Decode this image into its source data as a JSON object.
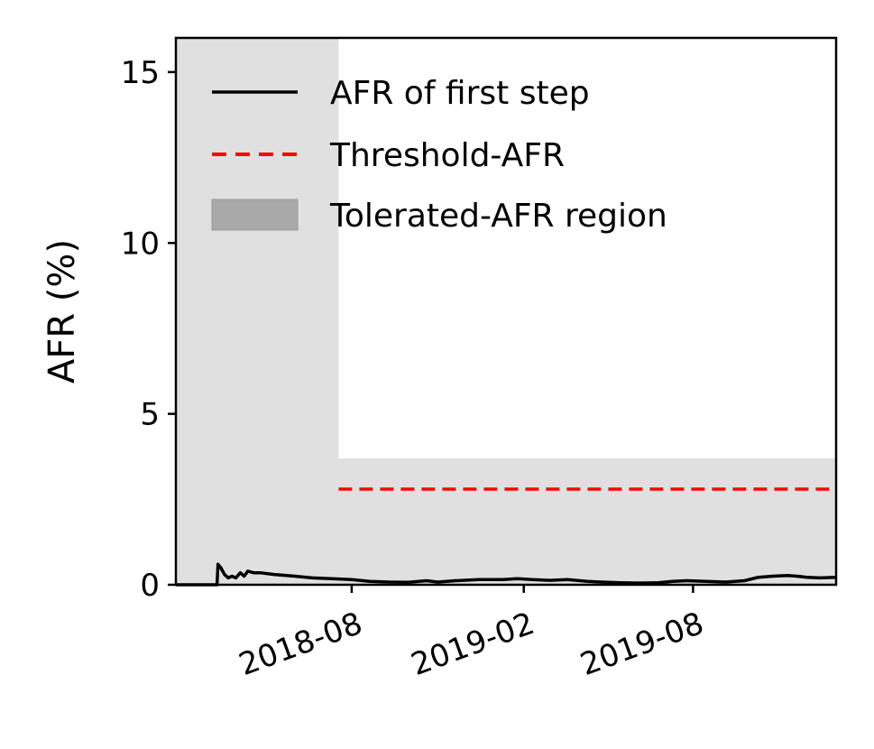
{
  "chart_data": {
    "type": "line",
    "ylabel": "AFR (%)",
    "xlabel": "",
    "ylim": [
      0,
      16
    ],
    "xlim": [
      "2018-01-25",
      "2020-01-01"
    ],
    "x_ticks": [
      {
        "date": "2018-08-01",
        "label": "2018-08"
      },
      {
        "date": "2019-02-01",
        "label": "2019-02"
      },
      {
        "date": "2019-08-01",
        "label": "2019-08"
      }
    ],
    "y_ticks": [
      0,
      5,
      10,
      15
    ],
    "grid": false,
    "legend_position": "top-right",
    "legend": [
      {
        "label": "AFR of first step",
        "kind": "line",
        "color": "#000000"
      },
      {
        "label": "Threshold-AFR",
        "kind": "dashed",
        "color": "#ff0000"
      },
      {
        "label": "Tolerated-AFR region",
        "kind": "patch",
        "color": "#a9a9a9"
      }
    ],
    "tolerated_regions": [
      {
        "x0": "2018-01-25",
        "x1": "2018-07-18",
        "y0": 0,
        "y1": 16
      },
      {
        "x0": "2018-07-18",
        "x1": "2020-01-01",
        "y0": 0,
        "y1": 3.7
      }
    ],
    "threshold": {
      "x0": "2018-07-18",
      "x1": "2020-01-01",
      "y": 2.8,
      "color": "#ff0000"
    },
    "series": [
      {
        "name": "AFR of first step",
        "color": "#000000",
        "points": [
          [
            "2018-01-25",
            0
          ],
          [
            "2018-03-10",
            0
          ],
          [
            "2018-03-11",
            0.6
          ],
          [
            "2018-03-14",
            0.5
          ],
          [
            "2018-03-18",
            0.3
          ],
          [
            "2018-03-22",
            0.2
          ],
          [
            "2018-03-26",
            0.25
          ],
          [
            "2018-03-30",
            0.2
          ],
          [
            "2018-04-04",
            0.35
          ],
          [
            "2018-04-08",
            0.25
          ],
          [
            "2018-04-12",
            0.4
          ],
          [
            "2018-04-18",
            0.35
          ],
          [
            "2018-04-25",
            0.35
          ],
          [
            "2018-05-10",
            0.3
          ],
          [
            "2018-06-01",
            0.25
          ],
          [
            "2018-06-20",
            0.2
          ],
          [
            "2018-07-10",
            0.18
          ],
          [
            "2018-08-01",
            0.15
          ],
          [
            "2018-08-20",
            0.1
          ],
          [
            "2018-09-10",
            0.08
          ],
          [
            "2018-10-01",
            0.07
          ],
          [
            "2018-10-20",
            0.12
          ],
          [
            "2018-11-01",
            0.08
          ],
          [
            "2018-11-20",
            0.12
          ],
          [
            "2018-12-15",
            0.15
          ],
          [
            "2019-01-10",
            0.15
          ],
          [
            "2019-01-25",
            0.18
          ],
          [
            "2019-02-10",
            0.15
          ],
          [
            "2019-03-01",
            0.13
          ],
          [
            "2019-03-20",
            0.15
          ],
          [
            "2019-04-10",
            0.1
          ],
          [
            "2019-04-25",
            0.08
          ],
          [
            "2019-05-15",
            0.06
          ],
          [
            "2019-06-05",
            0.05
          ],
          [
            "2019-06-25",
            0.06
          ],
          [
            "2019-07-10",
            0.1
          ],
          [
            "2019-07-25",
            0.12
          ],
          [
            "2019-08-15",
            0.1
          ],
          [
            "2019-09-05",
            0.08
          ],
          [
            "2019-09-25",
            0.12
          ],
          [
            "2019-10-10",
            0.22
          ],
          [
            "2019-10-25",
            0.25
          ],
          [
            "2019-11-10",
            0.27
          ],
          [
            "2019-11-20",
            0.25
          ],
          [
            "2019-12-01",
            0.22
          ],
          [
            "2019-12-15",
            0.2
          ],
          [
            "2020-01-01",
            0.22
          ]
        ]
      }
    ]
  }
}
